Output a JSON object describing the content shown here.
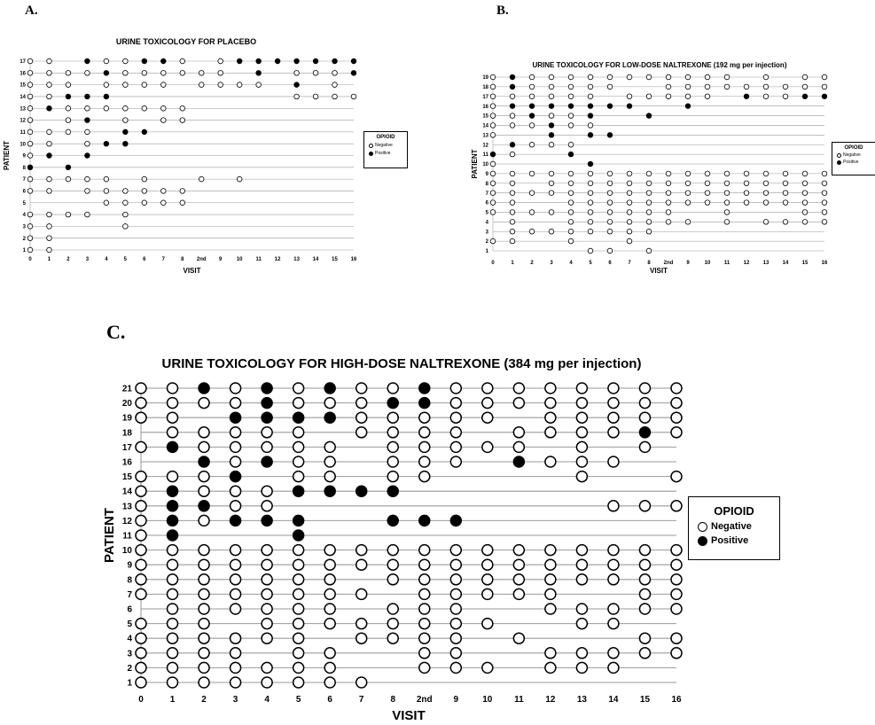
{
  "panels": {
    "a": "A.",
    "b": "B.",
    "c": "C."
  },
  "legend": {
    "title": "OPIOID",
    "negative": "Negative",
    "positive": "Positive"
  },
  "colors": {
    "ink": "#000000",
    "gridline": "#9a9a9a",
    "open_marker_fill": "#ffffff"
  },
  "chart_data": [
    {
      "type": "scatter",
      "title": "URINE TOXICOLOGY FOR PLACEBO",
      "xlabel": "VISIT",
      "ylabel": "PATIENT",
      "categories": [
        "0",
        "1",
        "2",
        "3",
        "4",
        "5",
        "6",
        "7",
        "8",
        "2nd",
        "9",
        "10",
        "11",
        "12",
        "13",
        "14",
        "15",
        "16"
      ],
      "encoding": {
        "0": "Negative",
        "1": "Positive"
      },
      "rows": [
        {
          "patient": 17,
          "visits": {
            "0": 0,
            "1": 0,
            "3": 1,
            "4": 0,
            "5": 0,
            "6": 1,
            "7": 1,
            "8": 0,
            "9": 0,
            "10": 1,
            "11": 1,
            "12": 1,
            "13": 1,
            "14": 1,
            "15": 1,
            "16": 1
          }
        },
        {
          "patient": 16,
          "visits": {
            "0": 0,
            "1": 0,
            "2": 0,
            "3": 0,
            "4": 1,
            "5": 0,
            "6": 0,
            "7": 0,
            "8": 0,
            "2nd": 0,
            "9": 0,
            "11": 1,
            "13": 0,
            "14": 0,
            "15": 0,
            "16": 1
          }
        },
        {
          "patient": 15,
          "visits": {
            "0": 0,
            "1": 0,
            "2": 0,
            "4": 0,
            "5": 0,
            "6": 0,
            "7": 0,
            "2nd": 0,
            "9": 0,
            "10": 0,
            "11": 0,
            "13": 1,
            "15": 0
          }
        },
        {
          "patient": 14,
          "visits": {
            "0": 0,
            "1": 0,
            "2": 1,
            "3": 1,
            "4": 1,
            "13": 0,
            "14": 0,
            "15": 0,
            "16": 0
          }
        },
        {
          "patient": 13,
          "visits": {
            "0": 0,
            "1": 1,
            "2": 0,
            "3": 0,
            "4": 0,
            "5": 0,
            "6": 0,
            "7": 0,
            "8": 0
          }
        },
        {
          "patient": 12,
          "visits": {
            "0": 0,
            "2": 0,
            "3": 1,
            "5": 0,
            "7": 0,
            "8": 0
          }
        },
        {
          "patient": 11,
          "visits": {
            "0": 0,
            "1": 0,
            "2": 0,
            "3": 0,
            "5": 1,
            "6": 1
          }
        },
        {
          "patient": 10,
          "visits": {
            "0": 0,
            "1": 0,
            "3": 0,
            "4": 1,
            "5": 1
          }
        },
        {
          "patient": 9,
          "visits": {
            "0": 0,
            "1": 1,
            "3": 1
          }
        },
        {
          "patient": 8,
          "visits": {
            "0": 1,
            "2": 1
          }
        },
        {
          "patient": 7,
          "visits": {
            "0": 0,
            "1": 0,
            "2": 0,
            "3": 0,
            "4": 0,
            "6": 0,
            "2nd": 0,
            "10": 0
          }
        },
        {
          "patient": 6,
          "visits": {
            "0": 0,
            "1": 0,
            "3": 0,
            "4": 0,
            "5": 0,
            "6": 0,
            "7": 0,
            "8": 0
          }
        },
        {
          "patient": 5,
          "visits": {
            "4": 0,
            "5": 0,
            "6": 0,
            "7": 0,
            "8": 0
          }
        },
        {
          "patient": 4,
          "visits": {
            "0": 0,
            "1": 0,
            "2": 0,
            "3": 0,
            "5": 0
          }
        },
        {
          "patient": 3,
          "visits": {
            "0": 0,
            "1": 0,
            "5": 0
          }
        },
        {
          "patient": 2,
          "visits": {
            "0": 0,
            "1": 0
          }
        },
        {
          "patient": 1,
          "visits": {
            "0": 0,
            "1": 0
          }
        }
      ]
    },
    {
      "type": "scatter",
      "title": "URINE TOXICOLOGY FOR LOW-DOSE NALTREXONE (192 mg per injection)",
      "xlabel": "VISIT",
      "ylabel": "PATIENT",
      "categories": [
        "0",
        "1",
        "2",
        "3",
        "4",
        "5",
        "6",
        "7",
        "8",
        "2nd",
        "9",
        "10",
        "11",
        "12",
        "13",
        "14",
        "15",
        "16"
      ],
      "encoding": {
        "0": "Negative",
        "1": "Positive"
      },
      "rows": [
        {
          "patient": 19,
          "visits": {
            "0": 0,
            "1": 1,
            "2": 0,
            "3": 0,
            "4": 0,
            "5": 0,
            "6": 0,
            "7": 0,
            "8": 0,
            "2nd": 0,
            "9": 0,
            "10": 0,
            "11": 0,
            "13": 0,
            "15": 0,
            "16": 0
          }
        },
        {
          "patient": 18,
          "visits": {
            "0": 0,
            "1": 1,
            "2": 0,
            "3": 0,
            "4": 0,
            "5": 0,
            "6": 0,
            "2nd": 0,
            "9": 0,
            "10": 0,
            "11": 0,
            "12": 0,
            "13": 0,
            "14": 0,
            "15": 0,
            "16": 0
          }
        },
        {
          "patient": 17,
          "visits": {
            "0": 0,
            "1": 0,
            "2": 0,
            "3": 0,
            "4": 0,
            "5": 0,
            "7": 0,
            "8": 0,
            "2nd": 0,
            "9": 0,
            "10": 0,
            "12": 1,
            "13": 0,
            "14": 0,
            "15": 1,
            "16": 1
          }
        },
        {
          "patient": 16,
          "visits": {
            "0": 0,
            "1": 1,
            "2": 1,
            "3": 1,
            "4": 1,
            "5": 1,
            "6": 1,
            "7": 1,
            "9": 1
          }
        },
        {
          "patient": 15,
          "visits": {
            "0": 0,
            "1": 0,
            "2": 1,
            "3": 0,
            "4": 0,
            "5": 1,
            "8": 1
          }
        },
        {
          "patient": 14,
          "visits": {
            "0": 0,
            "1": 0,
            "2": 0,
            "3": 1,
            "4": 0,
            "5": 0
          }
        },
        {
          "patient": 13,
          "visits": {
            "0": 0,
            "3": 1,
            "5": 1,
            "6": 1
          }
        },
        {
          "patient": 12,
          "visits": {
            "1": 1,
            "2": 0,
            "3": 0,
            "4": 0
          }
        },
        {
          "patient": 11,
          "visits": {
            "0": 1,
            "1": 0,
            "4": 1
          }
        },
        {
          "patient": 10,
          "visits": {
            "0": 0,
            "5": 1
          }
        },
        {
          "patient": 9,
          "visits": {
            "0": 0,
            "1": 0,
            "2": 0,
            "3": 0,
            "4": 0,
            "5": 0,
            "6": 0,
            "7": 0,
            "8": 0,
            "2nd": 0,
            "9": 0,
            "10": 0,
            "11": 0,
            "12": 0,
            "13": 0,
            "14": 0,
            "15": 0,
            "16": 0
          }
        },
        {
          "patient": 8,
          "visits": {
            "0": 0,
            "1": 0,
            "3": 0,
            "4": 0,
            "5": 0,
            "6": 0,
            "7": 0,
            "8": 0,
            "2nd": 0,
            "9": 0,
            "10": 0,
            "11": 0,
            "12": 0,
            "13": 0,
            "14": 0,
            "15": 0,
            "16": 0
          }
        },
        {
          "patient": 7,
          "visits": {
            "0": 0,
            "1": 0,
            "2": 0,
            "3": 0,
            "4": 0,
            "5": 0,
            "6": 0,
            "7": 0,
            "8": 0,
            "2nd": 0,
            "9": 0,
            "10": 0,
            "11": 0,
            "12": 0,
            "13": 0,
            "14": 0,
            "15": 0,
            "16": 0
          }
        },
        {
          "patient": 6,
          "visits": {
            "0": 0,
            "1": 0,
            "4": 0,
            "5": 0,
            "6": 0,
            "7": 0,
            "8": 0,
            "2nd": 0,
            "9": 0,
            "10": 0,
            "11": 0,
            "12": 0,
            "13": 0,
            "14": 0,
            "15": 0,
            "16": 0
          }
        },
        {
          "patient": 5,
          "visits": {
            "0": 0,
            "1": 0,
            "2": 0,
            "3": 0,
            "4": 0,
            "5": 0,
            "6": 0,
            "7": 0,
            "8": 0,
            "2nd": 0,
            "11": 0,
            "15": 0,
            "16": 0
          }
        },
        {
          "patient": 4,
          "visits": {
            "1": 0,
            "4": 0,
            "5": 0,
            "6": 0,
            "7": 0,
            "8": 0,
            "2nd": 0,
            "9": 0,
            "11": 0,
            "13": 0,
            "14": 0,
            "15": 0,
            "16": 0
          }
        },
        {
          "patient": 3,
          "visits": {
            "1": 0,
            "2": 0,
            "3": 0,
            "4": 0,
            "5": 0,
            "6": 0,
            "7": 0,
            "8": 0
          }
        },
        {
          "patient": 2,
          "visits": {
            "0": 0,
            "1": 0,
            "4": 0,
            "7": 0
          }
        },
        {
          "patient": 1,
          "visits": {
            "5": 0,
            "6": 0,
            "8": 0
          }
        }
      ]
    },
    {
      "type": "scatter",
      "title": "URINE TOXICOLOGY FOR HIGH-DOSE NALTREXONE (384 mg per injection)",
      "xlabel": "VISIT",
      "ylabel": "PATIENT",
      "categories": [
        "0",
        "1",
        "2",
        "3",
        "4",
        "5",
        "6",
        "7",
        "8",
        "2nd",
        "9",
        "10",
        "11",
        "12",
        "13",
        "14",
        "15",
        "16"
      ],
      "encoding": {
        "0": "Negative",
        "1": "Positive"
      },
      "rows": [
        {
          "patient": 21,
          "visits": {
            "0": 0,
            "1": 0,
            "2": 1,
            "3": 0,
            "4": 1,
            "5": 0,
            "6": 1,
            "7": 0,
            "8": 0,
            "2nd": 1,
            "9": 0,
            "10": 0,
            "11": 0,
            "12": 0,
            "13": 0,
            "14": 0,
            "15": 0,
            "16": 0
          }
        },
        {
          "patient": 20,
          "visits": {
            "0": 0,
            "1": 0,
            "2": 0,
            "3": 0,
            "4": 1,
            "5": 0,
            "6": 0,
            "7": 0,
            "8": 1,
            "2nd": 1,
            "9": 0,
            "10": 0,
            "11": 0,
            "12": 0,
            "13": 0,
            "14": 0,
            "15": 0,
            "16": 0
          }
        },
        {
          "patient": 19,
          "visits": {
            "0": 0,
            "1": 0,
            "3": 1,
            "4": 1,
            "5": 1,
            "6": 1,
            "7": 0,
            "8": 0,
            "2nd": 0,
            "9": 0,
            "10": 0,
            "12": 0,
            "13": 0,
            "14": 0,
            "15": 0,
            "16": 0
          }
        },
        {
          "patient": 18,
          "visits": {
            "1": 0,
            "2": 0,
            "3": 0,
            "4": 0,
            "5": 0,
            "7": 0,
            "8": 0,
            "2nd": 0,
            "9": 0,
            "11": 0,
            "12": 0,
            "13": 0,
            "14": 0,
            "15": 1,
            "16": 0
          }
        },
        {
          "patient": 17,
          "visits": {
            "0": 0,
            "1": 1,
            "2": 0,
            "3": 0,
            "4": 0,
            "5": 0,
            "6": 0,
            "8": 0,
            "2nd": 0,
            "9": 0,
            "10": 0,
            "11": 0,
            "13": 0,
            "15": 0
          }
        },
        {
          "patient": 16,
          "visits": {
            "2": 1,
            "3": 0,
            "4": 1,
            "5": 0,
            "6": 0,
            "8": 0,
            "2nd": 0,
            "9": 0,
            "11": 1,
            "12": 0,
            "13": 0,
            "14": 0
          }
        },
        {
          "patient": 15,
          "visits": {
            "0": 0,
            "1": 0,
            "2": 0,
            "3": 1,
            "5": 0,
            "6": 0,
            "8": 0,
            "2nd": 0,
            "13": 0,
            "16": 0
          }
        },
        {
          "patient": 14,
          "visits": {
            "0": 0,
            "1": 1,
            "2": 0,
            "3": 0,
            "4": 0,
            "5": 1,
            "6": 1,
            "7": 1,
            "8": 1
          }
        },
        {
          "patient": 13,
          "visits": {
            "0": 0,
            "1": 1,
            "2": 1,
            "3": 0,
            "4": 0,
            "14": 0,
            "15": 0,
            "16": 0
          }
        },
        {
          "patient": 12,
          "visits": {
            "0": 0,
            "1": 1,
            "2": 0,
            "3": 1,
            "4": 1,
            "5": 1,
            "8": 1,
            "2nd": 1,
            "9": 1
          }
        },
        {
          "patient": 11,
          "visits": {
            "0": 0,
            "1": 1,
            "5": 1
          }
        },
        {
          "patient": 10,
          "visits": {
            "0": 0,
            "1": 0,
            "2": 0,
            "3": 0,
            "4": 0,
            "5": 0,
            "6": 0,
            "7": 0,
            "8": 0,
            "2nd": 0,
            "9": 0,
            "10": 0,
            "11": 0,
            "12": 0,
            "13": 0,
            "14": 0,
            "15": 0,
            "16": 0
          }
        },
        {
          "patient": 9,
          "visits": {
            "0": 0,
            "1": 0,
            "2": 0,
            "3": 0,
            "4": 0,
            "5": 0,
            "6": 0,
            "7": 0,
            "8": 0,
            "2nd": 0,
            "9": 0,
            "10": 0,
            "11": 0,
            "12": 0,
            "13": 0,
            "14": 0,
            "15": 0,
            "16": 0
          }
        },
        {
          "patient": 8,
          "visits": {
            "0": 0,
            "1": 0,
            "2": 0,
            "3": 0,
            "4": 0,
            "5": 0,
            "6": 0,
            "8": 0,
            "2nd": 0,
            "9": 0,
            "10": 0,
            "11": 0,
            "12": 0,
            "13": 0,
            "14": 0,
            "15": 0,
            "16": 0
          }
        },
        {
          "patient": 7,
          "visits": {
            "0": 0,
            "1": 0,
            "2": 0,
            "3": 0,
            "4": 0,
            "5": 0,
            "6": 0,
            "7": 0,
            "2nd": 0,
            "9": 0,
            "10": 0,
            "11": 0,
            "12": 0,
            "15": 0,
            "16": 0
          }
        },
        {
          "patient": 6,
          "visits": {
            "1": 0,
            "2": 0,
            "3": 0,
            "4": 0,
            "5": 0,
            "6": 0,
            "8": 0,
            "2nd": 0,
            "9": 0,
            "12": 0,
            "13": 0,
            "14": 0,
            "15": 0,
            "16": 0
          }
        },
        {
          "patient": 5,
          "visits": {
            "0": 0,
            "1": 0,
            "2": 0,
            "4": 0,
            "5": 0,
            "6": 0,
            "7": 0,
            "8": 0,
            "2nd": 0,
            "9": 0,
            "10": 0,
            "13": 0,
            "14": 0
          }
        },
        {
          "patient": 4,
          "visits": {
            "0": 0,
            "1": 0,
            "2": 0,
            "3": 0,
            "4": 0,
            "5": 0,
            "7": 0,
            "8": 0,
            "2nd": 0,
            "9": 0,
            "11": 0,
            "15": 0,
            "16": 0
          }
        },
        {
          "patient": 3,
          "visits": {
            "0": 0,
            "1": 0,
            "2": 0,
            "3": 0,
            "5": 0,
            "6": 0,
            "2nd": 0,
            "9": 0,
            "12": 0,
            "13": 0,
            "14": 0,
            "15": 0,
            "16": 0
          }
        },
        {
          "patient": 2,
          "visits": {
            "0": 0,
            "1": 0,
            "2": 0,
            "3": 0,
            "4": 0,
            "5": 0,
            "6": 0,
            "2nd": 0,
            "9": 0,
            "10": 0,
            "12": 0,
            "13": 0,
            "14": 0
          }
        },
        {
          "patient": 1,
          "visits": {
            "0": 0,
            "1": 0,
            "2": 0,
            "3": 0,
            "4": 0,
            "5": 0,
            "6": 0,
            "7": 0
          }
        }
      ]
    }
  ]
}
